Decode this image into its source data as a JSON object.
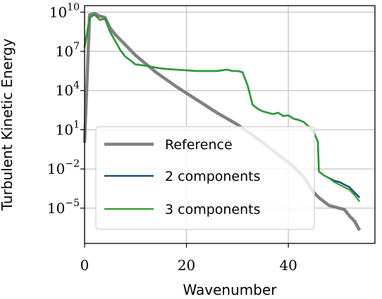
{
  "chart_data": {
    "type": "line",
    "title": "",
    "xlabel": "Wavenumber",
    "ylabel": "Turbulent Kinetic Energy",
    "xlim": [
      0,
      57
    ],
    "ylim_log10": [
      -7.7,
      10.5
    ],
    "y_scale": "log",
    "x_ticks": [
      "0",
      "20",
      "40"
    ],
    "y_ticks": [
      {
        "base": "10",
        "exp": "10"
      },
      {
        "base": "10",
        "exp": "7"
      },
      {
        "base": "10",
        "exp": "4"
      },
      {
        "base": "10",
        "exp": "1"
      },
      {
        "base": "10",
        "exp": "−2"
      },
      {
        "base": "10",
        "exp": "−5"
      }
    ],
    "grid": true,
    "legend_position": "lower-left",
    "series": [
      {
        "name": "Reference",
        "color": "#808080",
        "x": [
          0,
          1,
          2,
          3,
          4,
          5,
          6,
          8,
          10,
          14,
          18,
          22,
          26,
          30,
          34,
          38,
          41,
          43,
          45,
          46,
          48,
          50,
          51,
          52,
          53,
          54
        ],
        "log10_y": [
          0,
          9.8,
          9.9,
          9.7,
          9.6,
          8.8,
          8.3,
          7.5,
          6.7,
          5.4,
          4.3,
          3.3,
          2.3,
          1.4,
          0.3,
          -0.9,
          -1.8,
          -2.6,
          -3.8,
          -4.2,
          -4.8,
          -5.0,
          -5.1,
          -5.6,
          -6.0,
          -6.7
        ]
      },
      {
        "name": "2 components",
        "color": "#1f4e79",
        "x": [
          0,
          1,
          2,
          3,
          4,
          5,
          6,
          7,
          8,
          9,
          10,
          12,
          14,
          16,
          18,
          20,
          22,
          24,
          26,
          27,
          28,
          29,
          30,
          31,
          32,
          33,
          34,
          35,
          36,
          37,
          38,
          39,
          40,
          41,
          42,
          43,
          44,
          45,
          45.8,
          46,
          47,
          48,
          49,
          50,
          51,
          52,
          53,
          54
        ],
        "log10_y": [
          7.3,
          9.6,
          9.8,
          9.4,
          9.5,
          8.5,
          7.8,
          7.1,
          6.6,
          6.3,
          6.0,
          5.9,
          5.75,
          5.65,
          5.6,
          5.55,
          5.5,
          5.5,
          5.5,
          5.55,
          5.6,
          5.5,
          5.5,
          5.4,
          4.4,
          2.9,
          2.6,
          2.4,
          2.3,
          2.2,
          2.3,
          2.05,
          2.1,
          1.85,
          1.75,
          1.6,
          1.25,
          0.8,
          0.1,
          -2.2,
          -2.5,
          -2.7,
          -2.9,
          -3.0,
          -3.2,
          -3.4,
          -3.8,
          -4.2
        ]
      },
      {
        "name": "3 components",
        "color": "#2ca02c",
        "x": [
          0,
          1,
          2,
          3,
          4,
          5,
          6,
          7,
          8,
          9,
          10,
          12,
          14,
          16,
          18,
          20,
          22,
          24,
          26,
          27,
          28,
          29,
          30,
          31,
          32,
          33,
          34,
          35,
          36,
          37,
          38,
          39,
          40,
          41,
          42,
          43,
          44,
          45,
          45.8,
          46,
          47,
          48,
          49,
          50,
          51,
          52,
          53,
          54
        ],
        "log10_y": [
          7.3,
          9.6,
          9.8,
          9.4,
          9.5,
          8.5,
          7.8,
          7.1,
          6.6,
          6.3,
          6.0,
          5.9,
          5.75,
          5.65,
          5.6,
          5.55,
          5.5,
          5.5,
          5.5,
          5.55,
          5.6,
          5.5,
          5.5,
          5.4,
          4.4,
          2.9,
          2.6,
          2.4,
          2.3,
          2.2,
          2.3,
          2.05,
          2.1,
          1.85,
          1.75,
          1.6,
          1.25,
          0.8,
          0.1,
          -2.2,
          -2.5,
          -2.7,
          -3.0,
          -3.2,
          -3.4,
          -3.6,
          -4.0,
          -4.5
        ]
      }
    ]
  }
}
